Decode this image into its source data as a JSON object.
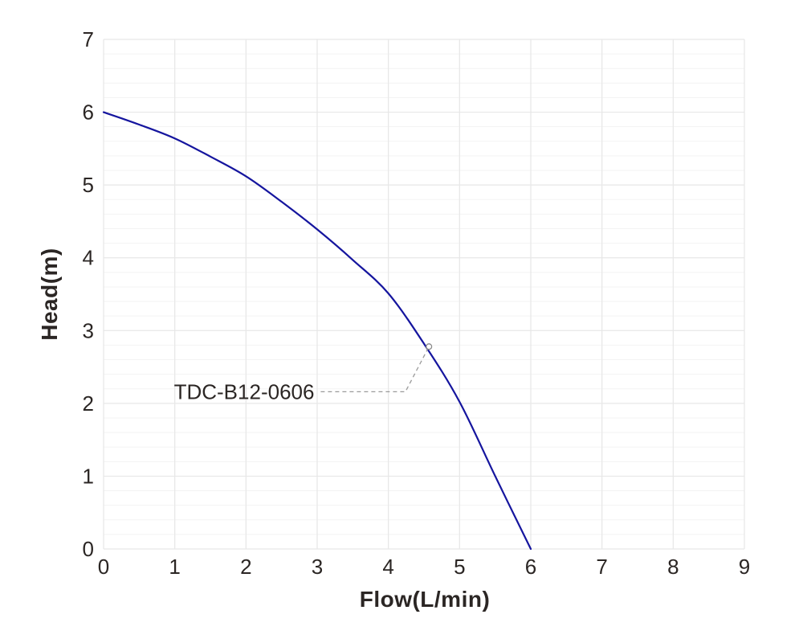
{
  "chart_data": {
    "type": "line",
    "title": "",
    "xlabel": "Flow(L/min)",
    "ylabel": "Head(m)",
    "xlim": [
      0,
      9
    ],
    "ylim": [
      0,
      7
    ],
    "x_ticks": [
      0,
      1,
      2,
      3,
      4,
      5,
      6,
      7,
      8,
      9
    ],
    "y_ticks": [
      0,
      1,
      2,
      3,
      4,
      5,
      6,
      7
    ],
    "y_minor_step": 0.2,
    "grid": {
      "vertical": "major-only",
      "horizontal": "major-and-minor"
    },
    "legend_position": "none",
    "series": [
      {
        "name": "TDC-B12-0606",
        "x": [
          0,
          0.5,
          1,
          1.5,
          2,
          2.5,
          3,
          3.5,
          4,
          4.5,
          5,
          5.5,
          6
        ],
        "y": [
          6.0,
          5.83,
          5.64,
          5.39,
          5.12,
          4.77,
          4.39,
          3.97,
          3.51,
          2.82,
          2.02,
          1.0,
          0.0
        ]
      }
    ],
    "annotation": {
      "label": "TDC-B12-0606",
      "marker_point": {
        "x": 4.57,
        "y": 2.78
      },
      "leader_points": [
        [
          3.05,
          2.16
        ],
        [
          4.24,
          2.16
        ],
        [
          4.57,
          2.78
        ]
      ],
      "label_anchor": {
        "x": 2.96,
        "y": 2.16
      }
    },
    "colors": {
      "curve": "#15159e",
      "grid_major": "#e7e7e7",
      "grid_minor": "#f3f3f3",
      "text": "#2b2624",
      "leader": "#9a9a9a",
      "marker_stroke": "#8a8a8a",
      "background": "#ffffff"
    }
  }
}
